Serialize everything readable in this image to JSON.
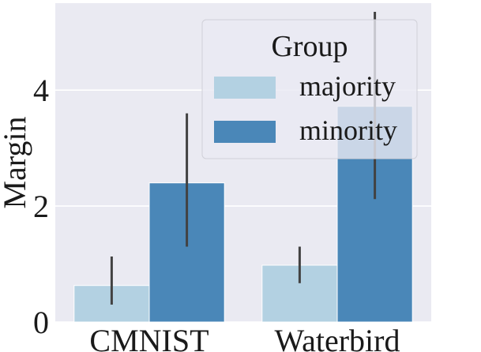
{
  "chart_data": {
    "type": "bar",
    "title": "",
    "xlabel": "",
    "ylabel": "Margin",
    "categories": [
      "CMNIST",
      "Waterbird"
    ],
    "series": [
      {
        "name": "majority",
        "color": "#b3d1e2",
        "values": [
          0.63,
          0.98
        ],
        "err_low": [
          0.3,
          0.67
        ],
        "err_high": [
          1.13,
          1.3
        ]
      },
      {
        "name": "minority",
        "color": "#4a87b8",
        "values": [
          2.4,
          3.72
        ],
        "err_low": [
          1.3,
          2.12
        ],
        "err_high": [
          3.6,
          5.35
        ]
      }
    ],
    "yticks": [
      0,
      2,
      4
    ],
    "ylim": [
      0,
      5.5
    ],
    "grid": true,
    "legend": {
      "title": "Group",
      "position": "top-right"
    },
    "colors": {
      "background": "#eaeaf2",
      "grid": "#ffffff",
      "errorbar": "#424242"
    }
  }
}
